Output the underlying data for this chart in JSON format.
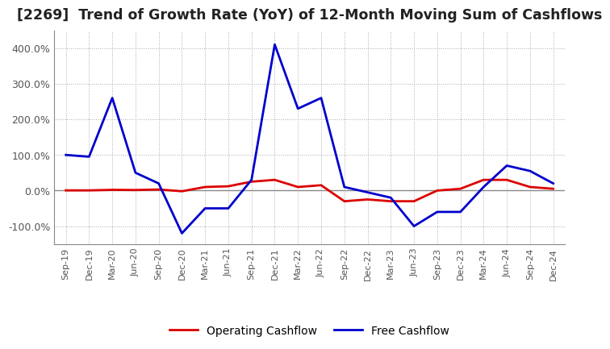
{
  "title": "[2269]  Trend of Growth Rate (YoY) of 12-Month Moving Sum of Cashflows",
  "title_fontsize": 12.5,
  "background_color": "#ffffff",
  "plot_bg_color": "#ffffff",
  "grid_color": "#aaaaaa",
  "legend_labels": [
    "Operating Cashflow",
    "Free Cashflow"
  ],
  "legend_colors": [
    "#dd0000",
    "#0000cc"
  ],
  "x_labels": [
    "Sep-19",
    "Dec-19",
    "Mar-20",
    "Jun-20",
    "Sep-20",
    "Dec-20",
    "Mar-21",
    "Jun-21",
    "Sep-21",
    "Dec-21",
    "Mar-22",
    "Jun-22",
    "Sep-22",
    "Dec-22",
    "Mar-23",
    "Jun-23",
    "Sep-23",
    "Dec-23",
    "Mar-24",
    "Jun-24",
    "Sep-24",
    "Dec-24"
  ],
  "operating_cf": [
    0.5,
    0.5,
    2.0,
    1.5,
    3.0,
    -2.0,
    10.0,
    12.0,
    25.0,
    30.0,
    10.0,
    15.0,
    -30.0,
    -25.0,
    -30.0,
    -30.0,
    0.0,
    5.0,
    30.0,
    30.0,
    10.0,
    5.0
  ],
  "free_cf": [
    100.0,
    95.0,
    260.0,
    50.0,
    20.0,
    -120.0,
    -50.0,
    -50.0,
    30.0,
    410.0,
    230.0,
    260.0,
    10.0,
    -5.0,
    -20.0,
    -100.0,
    -60.0,
    -60.0,
    10.0,
    70.0,
    55.0,
    20.0
  ],
  "ylim": [
    -150,
    450
  ],
  "yticks": [
    -100,
    0,
    100,
    200,
    300,
    400
  ],
  "ytick_labels": [
    "-100.0%",
    "0.0%",
    "100.0%",
    "200.0%",
    "300.0%",
    "400.0%"
  ],
  "line_width": 2.0,
  "zero_line_color": "#888888"
}
